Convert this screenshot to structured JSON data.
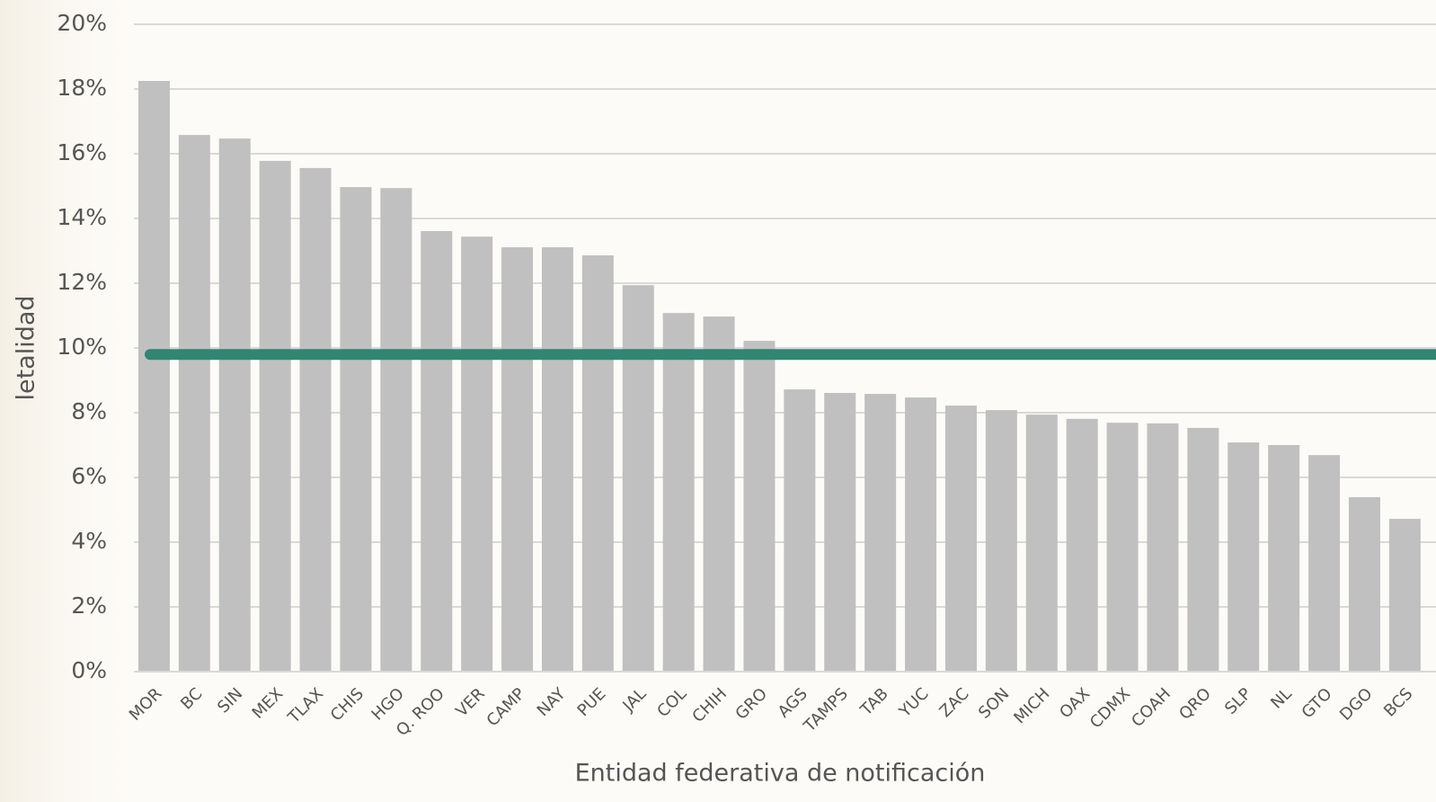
{
  "chart_data": {
    "type": "bar",
    "x_label": "Entidad federativa de notificación",
    "y_label": "letalidad",
    "categories": [
      "MOR",
      "BC",
      "SIN",
      "MEX",
      "TLAX",
      "CHIS",
      "HGO",
      "Q. ROO",
      "VER",
      "CAMP",
      "NAY",
      "PUE",
      "JAL",
      "COL",
      "CHIH",
      "GRO",
      "AGS",
      "TAMPS",
      "TAB",
      "YUC",
      "ZAC",
      "SON",
      "MICH",
      "OAX",
      "CDMX",
      "COAH",
      "QRO",
      "SLP",
      "NL",
      "GTO",
      "DGO",
      "BCS"
    ],
    "values": [
      18.25,
      16.58,
      16.47,
      15.78,
      15.56,
      14.97,
      14.94,
      13.61,
      13.44,
      13.11,
      13.11,
      12.86,
      11.94,
      11.08,
      10.97,
      10.22,
      8.72,
      8.61,
      8.58,
      8.47,
      8.22,
      8.08,
      7.94,
      7.81,
      7.69,
      7.67,
      7.53,
      7.08,
      7.0,
      6.69,
      5.39,
      4.72
    ],
    "color": "#c0c0c0",
    "reference_line": 9.8,
    "reference_color": "#318572",
    "ylim": [
      0,
      20
    ],
    "yticks": [
      {
        "value": 0,
        "label": "0%"
      },
      {
        "value": 2,
        "label": "2%"
      },
      {
        "value": 4,
        "label": "4%"
      },
      {
        "value": 6,
        "label": "6%"
      },
      {
        "value": 8,
        "label": "8%"
      },
      {
        "value": 10,
        "label": "10%"
      },
      {
        "value": 12,
        "label": "12%"
      },
      {
        "value": 14,
        "label": "14%"
      },
      {
        "value": 16,
        "label": "16%"
      },
      {
        "value": 18,
        "label": "18%"
      },
      {
        "value": 20,
        "label": "20%"
      }
    ],
    "grid": true
  }
}
